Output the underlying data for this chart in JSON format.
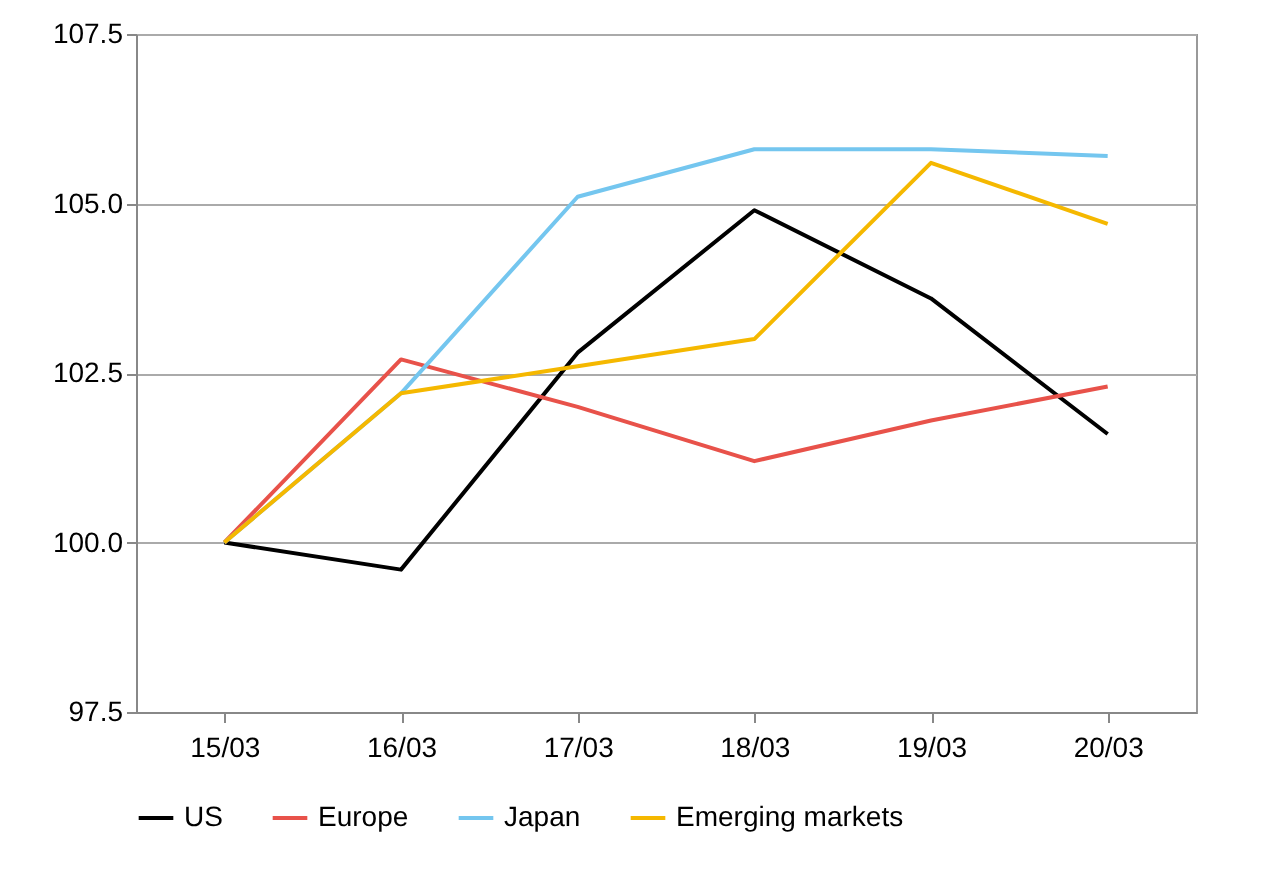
{
  "chart_data": {
    "type": "line",
    "categories": [
      "15/03",
      "16/03",
      "17/03",
      "18/03",
      "19/03",
      "20/03"
    ],
    "series": [
      {
        "name": "US",
        "color": "#000000",
        "values": [
          100.0,
          99.6,
          102.8,
          104.9,
          103.6,
          101.6
        ]
      },
      {
        "name": "Europe",
        "color": "#e8524a",
        "values": [
          100.0,
          102.7,
          102.0,
          101.2,
          101.8,
          102.3
        ]
      },
      {
        "name": "Japan",
        "color": "#74c6ef",
        "values": [
          100.0,
          102.2,
          105.1,
          105.8,
          105.8,
          105.7
        ]
      },
      {
        "name": "Emerging markets",
        "color": "#f5b800",
        "values": [
          100.0,
          102.2,
          102.6,
          103.0,
          105.6,
          104.7
        ]
      }
    ],
    "ylim": [
      97.5,
      107.5
    ],
    "yticks": [
      {
        "value": 97.5,
        "label": "97.5"
      },
      {
        "value": 100,
        "label": "100.0"
      },
      {
        "value": 102.5,
        "label": "102.5"
      },
      {
        "value": 105,
        "label": "105.0"
      },
      {
        "value": 107.5,
        "label": "107.5"
      }
    ],
    "grid": "y",
    "legend": "bottom",
    "marker": "none",
    "line_style": "solid"
  }
}
